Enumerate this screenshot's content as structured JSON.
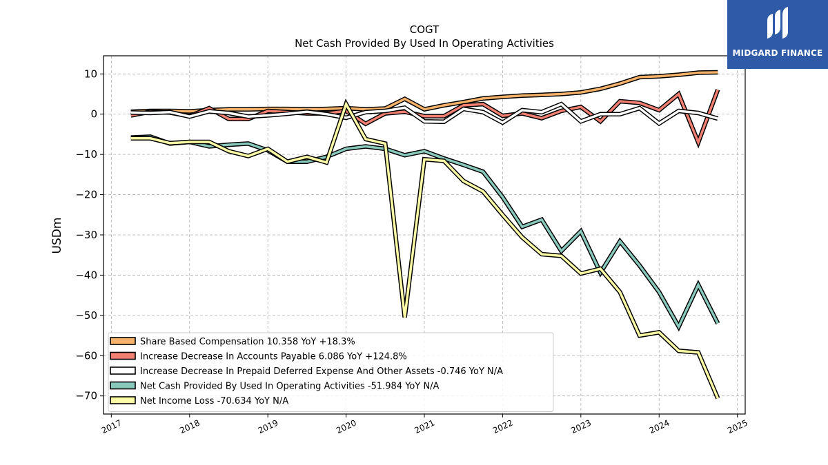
{
  "logo": {
    "text": "MIDGARD FINANCE",
    "color": "#2f5aa8"
  },
  "chart_data": {
    "type": "line",
    "title": "COGT",
    "subtitle": "Net Cash Provided By Used In Operating Activities",
    "xlabel": "",
    "ylabel": "USDm",
    "xlim": [
      2016.9,
      2025.1
    ],
    "ylim": [
      -74.5,
      14.5
    ],
    "x_ticks": [
      2017,
      2018,
      2019,
      2020,
      2021,
      2022,
      2023,
      2024,
      2025
    ],
    "y_ticks": [
      10,
      0,
      -10,
      -20,
      -30,
      -40,
      -50,
      -60,
      -70
    ],
    "y_tick_labels": [
      "10",
      "0",
      "−10",
      "−20",
      "−30",
      "−40",
      "−50",
      "−60",
      "−70"
    ],
    "grid": true,
    "legend_position": "lower-left",
    "series": [
      {
        "name": "Share Based Compensation",
        "legend": "Share Based Compensation  10.358 YoY +18.3%",
        "color": "#f6b26b",
        "points": [
          [
            2017.25,
            0.6
          ],
          [
            2017.5,
            0.8
          ],
          [
            2017.75,
            0.8
          ],
          [
            2018.0,
            0.7
          ],
          [
            2018.25,
            1.0
          ],
          [
            2018.5,
            1.2
          ],
          [
            2018.75,
            1.2
          ],
          [
            2019.0,
            1.3
          ],
          [
            2019.25,
            1.3
          ],
          [
            2019.5,
            1.2
          ],
          [
            2019.75,
            1.3
          ],
          [
            2020.0,
            1.5
          ],
          [
            2020.25,
            1.2
          ],
          [
            2020.5,
            1.4
          ],
          [
            2020.75,
            3.8
          ],
          [
            2021.0,
            1.2
          ],
          [
            2021.25,
            2.2
          ],
          [
            2021.5,
            3.0
          ],
          [
            2021.75,
            3.9
          ],
          [
            2022.0,
            4.3
          ],
          [
            2022.25,
            4.6
          ],
          [
            2022.5,
            4.8
          ],
          [
            2022.75,
            5.0
          ],
          [
            2023.0,
            5.4
          ],
          [
            2023.25,
            6.3
          ],
          [
            2023.5,
            7.6
          ],
          [
            2023.75,
            9.2
          ],
          [
            2024.0,
            9.4
          ],
          [
            2024.25,
            9.8
          ],
          [
            2024.5,
            10.3
          ],
          [
            2024.75,
            10.4
          ]
        ]
      },
      {
        "name": "Increase Decrease In Accounts Payable",
        "legend": "Increase Decrease In Accounts Payable  6.086 YoY +124.8%",
        "color": "#f28072",
        "points": [
          [
            2017.25,
            -0.3
          ],
          [
            2017.5,
            0.6
          ],
          [
            2017.75,
            0.4
          ],
          [
            2018.0,
            -0.5
          ],
          [
            2018.25,
            1.5
          ],
          [
            2018.5,
            -1.2
          ],
          [
            2018.75,
            -1.2
          ],
          [
            2019.0,
            0.8
          ],
          [
            2019.25,
            0.5
          ],
          [
            2019.5,
            0.2
          ],
          [
            2019.75,
            0.2
          ],
          [
            2020.0,
            0.8
          ],
          [
            2020.25,
            -2.4
          ],
          [
            2020.5,
            0.2
          ],
          [
            2020.75,
            0.6
          ],
          [
            2021.0,
            -0.5
          ],
          [
            2021.25,
            -0.5
          ],
          [
            2021.5,
            2.2
          ],
          [
            2021.75,
            2.5
          ],
          [
            2022.0,
            -0.4
          ],
          [
            2022.25,
            0.2
          ],
          [
            2022.5,
            -1.0
          ],
          [
            2022.75,
            0.8
          ],
          [
            2023.0,
            1.8
          ],
          [
            2023.25,
            -1.8
          ],
          [
            2023.5,
            3.2
          ],
          [
            2023.75,
            2.8
          ],
          [
            2024.0,
            1.0
          ],
          [
            2024.25,
            5.0
          ],
          [
            2024.5,
            -7.0
          ],
          [
            2024.75,
            6.1
          ]
        ]
      },
      {
        "name": "Increase Decrease In Prepaid Deferred Expense And Other Assets",
        "legend": "Increase Decrease In Prepaid Deferred Expense And Other Assets  -0.746 YoY N/A",
        "color": "#ffffff",
        "points": [
          [
            2017.25,
            0.4
          ],
          [
            2017.5,
            0.3
          ],
          [
            2017.75,
            0.5
          ],
          [
            2018.0,
            -0.6
          ],
          [
            2018.25,
            0.7
          ],
          [
            2018.5,
            0.3
          ],
          [
            2018.75,
            -0.6
          ],
          [
            2019.0,
            -0.3
          ],
          [
            2019.25,
            0.1
          ],
          [
            2019.5,
            0.6
          ],
          [
            2019.75,
            0.0
          ],
          [
            2020.0,
            -0.9
          ],
          [
            2020.25,
            0.5
          ],
          [
            2020.5,
            0.8
          ],
          [
            2020.75,
            1.6
          ],
          [
            2021.0,
            -1.8
          ],
          [
            2021.25,
            -1.9
          ],
          [
            2021.5,
            1.3
          ],
          [
            2021.75,
            0.5
          ],
          [
            2022.0,
            -2.1
          ],
          [
            2022.25,
            1.0
          ],
          [
            2022.5,
            0.5
          ],
          [
            2022.75,
            2.5
          ],
          [
            2023.0,
            -1.8
          ],
          [
            2023.25,
            0.0
          ],
          [
            2023.5,
            0.0
          ],
          [
            2023.75,
            1.5
          ],
          [
            2024.0,
            -2.3
          ],
          [
            2024.25,
            0.8
          ],
          [
            2024.5,
            0.3
          ],
          [
            2024.75,
            -1.1
          ]
        ]
      },
      {
        "name": "Net Cash Provided By Used In Operating Activities",
        "legend": "Net Cash Provided By Used In Operating Activities  -51.984 YoY N/A",
        "color": "#88c9bc",
        "points": [
          [
            2017.25,
            -5.8
          ],
          [
            2017.5,
            -5.6
          ],
          [
            2017.75,
            -7.3
          ],
          [
            2018.0,
            -6.9
          ],
          [
            2018.25,
            -8.0
          ],
          [
            2018.5,
            -7.6
          ],
          [
            2018.75,
            -7.3
          ],
          [
            2019.0,
            -9.0
          ],
          [
            2019.25,
            -11.8
          ],
          [
            2019.5,
            -11.8
          ],
          [
            2019.75,
            -10.6
          ],
          [
            2020.0,
            -8.6
          ],
          [
            2020.25,
            -8.0
          ],
          [
            2020.5,
            -8.6
          ],
          [
            2020.75,
            -10.2
          ],
          [
            2021.0,
            -9.2
          ],
          [
            2021.25,
            -11.0
          ],
          [
            2021.5,
            -12.6
          ],
          [
            2021.75,
            -14.3
          ],
          [
            2022.0,
            -20.6
          ],
          [
            2022.25,
            -28.0
          ],
          [
            2022.5,
            -26.2
          ],
          [
            2022.75,
            -34.0
          ],
          [
            2023.0,
            -29.1
          ],
          [
            2023.25,
            -39.4
          ],
          [
            2023.5,
            -31.6
          ],
          [
            2023.75,
            -37.6
          ],
          [
            2024.0,
            -44.2
          ],
          [
            2024.25,
            -52.8
          ],
          [
            2024.5,
            -42.4
          ],
          [
            2024.75,
            -52.0
          ]
        ]
      },
      {
        "name": "Net Income Loss",
        "legend": "Net Income Loss  -70.634 YoY N/A",
        "color": "#fdfca6",
        "points": [
          [
            2017.25,
            -6.0
          ],
          [
            2017.5,
            -6.0
          ],
          [
            2017.75,
            -7.2
          ],
          [
            2018.0,
            -6.9
          ],
          [
            2018.25,
            -6.9
          ],
          [
            2018.5,
            -9.2
          ],
          [
            2018.75,
            -10.4
          ],
          [
            2019.0,
            -8.6
          ],
          [
            2019.25,
            -11.8
          ],
          [
            2019.5,
            -10.6
          ],
          [
            2019.75,
            -12.0
          ],
          [
            2020.0,
            2.5
          ],
          [
            2020.25,
            -6.2
          ],
          [
            2020.5,
            -7.3
          ],
          [
            2020.75,
            -50.5
          ],
          [
            2021.0,
            -11.2
          ],
          [
            2021.25,
            -11.6
          ],
          [
            2021.5,
            -16.6
          ],
          [
            2021.75,
            -19.2
          ],
          [
            2022.0,
            -25.0
          ],
          [
            2022.25,
            -30.6
          ],
          [
            2022.5,
            -34.8
          ],
          [
            2022.75,
            -35.2
          ],
          [
            2023.0,
            -39.6
          ],
          [
            2023.25,
            -38.4
          ],
          [
            2023.5,
            -44.2
          ],
          [
            2023.75,
            -55.0
          ],
          [
            2024.0,
            -54.2
          ],
          [
            2024.25,
            -58.8
          ],
          [
            2024.5,
            -59.2
          ],
          [
            2024.75,
            -70.6
          ]
        ]
      }
    ]
  }
}
